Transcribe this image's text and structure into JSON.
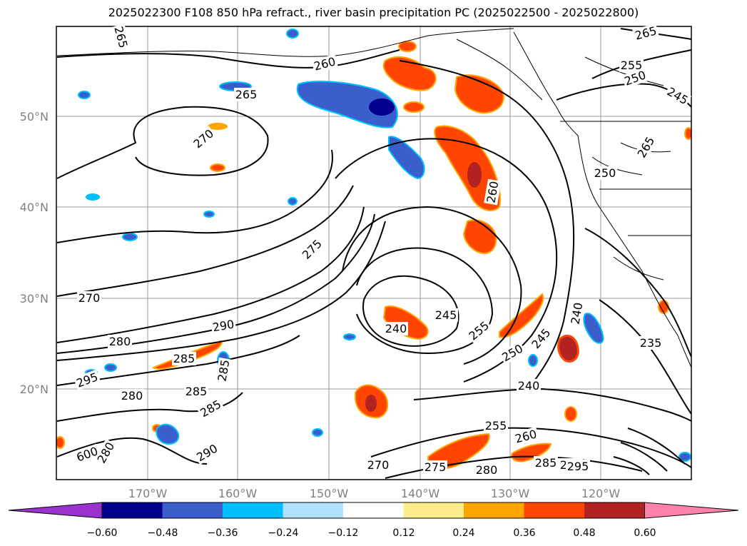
{
  "title": "2025022300 F108 850 hPa refract., river basin precipitation PC (2025022500 - 2025022800)",
  "lat_labels": [
    "50°N",
    "40°N",
    "30°N",
    "20°N"
  ],
  "lon_labels": [
    "170°W",
    "160°W",
    "150°W",
    "140°W",
    "130°W",
    "120°W"
  ],
  "colorbar": {
    "ticks": [
      "−0.60",
      "−0.48",
      "−0.36",
      "−0.24",
      "−0.12",
      "0.12",
      "0.24",
      "0.36",
      "0.48",
      "0.60"
    ],
    "colors": [
      "#9a32cd",
      "#00008b",
      "#3a5fcd",
      "#00bfff",
      "#b0e2ff",
      "#ffffff",
      "#ffec8b",
      "#ffa500",
      "#ff4500",
      "#b22222",
      "#ff82ab"
    ]
  },
  "contour_labels": [
    "265",
    "260",
    "265",
    "270",
    "265",
    "255",
    "250",
    "245",
    "265",
    "260",
    "250",
    "275",
    "245",
    "240",
    "255",
    "250",
    "245",
    "240",
    "240",
    "235",
    "270",
    "280",
    "290",
    "285",
    "295",
    "280",
    "285",
    "285",
    "285",
    "290",
    "255",
    "260",
    "270",
    "275",
    "280",
    "285",
    "290",
    "295",
    "600",
    "280"
  ]
}
